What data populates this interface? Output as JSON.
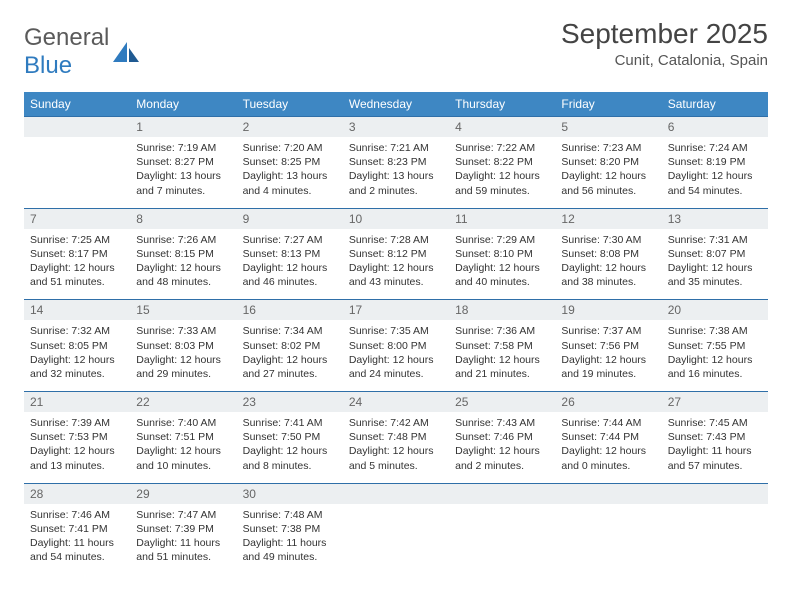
{
  "logo": {
    "word1": "General",
    "word2": "Blue"
  },
  "title": "September 2025",
  "location": "Cunit, Catalonia, Spain",
  "colors": {
    "header_bg": "#3e87c3",
    "header_text": "#ffffff",
    "daynum_bg": "#eceff1",
    "daynum_text": "#666666",
    "rule": "#2f6fa8",
    "body_text": "#333333",
    "logo_gray": "#5a5a5a",
    "logo_blue": "#2f7bbf"
  },
  "day_names": [
    "Sunday",
    "Monday",
    "Tuesday",
    "Wednesday",
    "Thursday",
    "Friday",
    "Saturday"
  ],
  "weeks": [
    [
      null,
      {
        "n": "1",
        "sr": "7:19 AM",
        "ss": "8:27 PM",
        "dl": "13 hours and 7 minutes."
      },
      {
        "n": "2",
        "sr": "7:20 AM",
        "ss": "8:25 PM",
        "dl": "13 hours and 4 minutes."
      },
      {
        "n": "3",
        "sr": "7:21 AM",
        "ss": "8:23 PM",
        "dl": "13 hours and 2 minutes."
      },
      {
        "n": "4",
        "sr": "7:22 AM",
        "ss": "8:22 PM",
        "dl": "12 hours and 59 minutes."
      },
      {
        "n": "5",
        "sr": "7:23 AM",
        "ss": "8:20 PM",
        "dl": "12 hours and 56 minutes."
      },
      {
        "n": "6",
        "sr": "7:24 AM",
        "ss": "8:19 PM",
        "dl": "12 hours and 54 minutes."
      }
    ],
    [
      {
        "n": "7",
        "sr": "7:25 AM",
        "ss": "8:17 PM",
        "dl": "12 hours and 51 minutes."
      },
      {
        "n": "8",
        "sr": "7:26 AM",
        "ss": "8:15 PM",
        "dl": "12 hours and 48 minutes."
      },
      {
        "n": "9",
        "sr": "7:27 AM",
        "ss": "8:13 PM",
        "dl": "12 hours and 46 minutes."
      },
      {
        "n": "10",
        "sr": "7:28 AM",
        "ss": "8:12 PM",
        "dl": "12 hours and 43 minutes."
      },
      {
        "n": "11",
        "sr": "7:29 AM",
        "ss": "8:10 PM",
        "dl": "12 hours and 40 minutes."
      },
      {
        "n": "12",
        "sr": "7:30 AM",
        "ss": "8:08 PM",
        "dl": "12 hours and 38 minutes."
      },
      {
        "n": "13",
        "sr": "7:31 AM",
        "ss": "8:07 PM",
        "dl": "12 hours and 35 minutes."
      }
    ],
    [
      {
        "n": "14",
        "sr": "7:32 AM",
        "ss": "8:05 PM",
        "dl": "12 hours and 32 minutes."
      },
      {
        "n": "15",
        "sr": "7:33 AM",
        "ss": "8:03 PM",
        "dl": "12 hours and 29 minutes."
      },
      {
        "n": "16",
        "sr": "7:34 AM",
        "ss": "8:02 PM",
        "dl": "12 hours and 27 minutes."
      },
      {
        "n": "17",
        "sr": "7:35 AM",
        "ss": "8:00 PM",
        "dl": "12 hours and 24 minutes."
      },
      {
        "n": "18",
        "sr": "7:36 AM",
        "ss": "7:58 PM",
        "dl": "12 hours and 21 minutes."
      },
      {
        "n": "19",
        "sr": "7:37 AM",
        "ss": "7:56 PM",
        "dl": "12 hours and 19 minutes."
      },
      {
        "n": "20",
        "sr": "7:38 AM",
        "ss": "7:55 PM",
        "dl": "12 hours and 16 minutes."
      }
    ],
    [
      {
        "n": "21",
        "sr": "7:39 AM",
        "ss": "7:53 PM",
        "dl": "12 hours and 13 minutes."
      },
      {
        "n": "22",
        "sr": "7:40 AM",
        "ss": "7:51 PM",
        "dl": "12 hours and 10 minutes."
      },
      {
        "n": "23",
        "sr": "7:41 AM",
        "ss": "7:50 PM",
        "dl": "12 hours and 8 minutes."
      },
      {
        "n": "24",
        "sr": "7:42 AM",
        "ss": "7:48 PM",
        "dl": "12 hours and 5 minutes."
      },
      {
        "n": "25",
        "sr": "7:43 AM",
        "ss": "7:46 PM",
        "dl": "12 hours and 2 minutes."
      },
      {
        "n": "26",
        "sr": "7:44 AM",
        "ss": "7:44 PM",
        "dl": "12 hours and 0 minutes."
      },
      {
        "n": "27",
        "sr": "7:45 AM",
        "ss": "7:43 PM",
        "dl": "11 hours and 57 minutes."
      }
    ],
    [
      {
        "n": "28",
        "sr": "7:46 AM",
        "ss": "7:41 PM",
        "dl": "11 hours and 54 minutes."
      },
      {
        "n": "29",
        "sr": "7:47 AM",
        "ss": "7:39 PM",
        "dl": "11 hours and 51 minutes."
      },
      {
        "n": "30",
        "sr": "7:48 AM",
        "ss": "7:38 PM",
        "dl": "11 hours and 49 minutes."
      },
      null,
      null,
      null,
      null
    ]
  ],
  "labels": {
    "sunrise": "Sunrise:",
    "sunset": "Sunset:",
    "daylight": "Daylight:"
  }
}
